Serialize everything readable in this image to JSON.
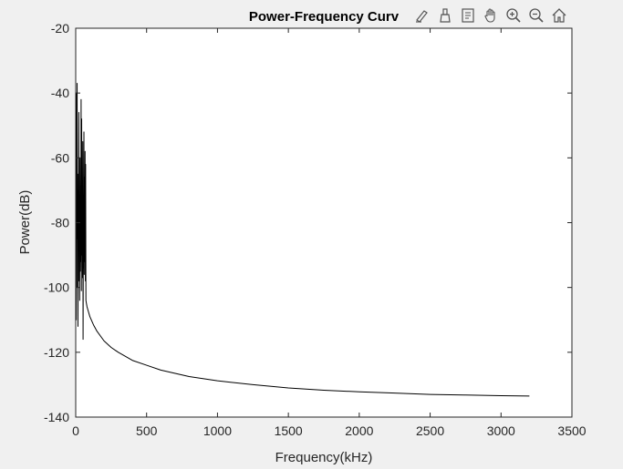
{
  "colors": {
    "background": "#f0f0f0",
    "axes_background": "#ffffff",
    "line": "#000000",
    "axis": "#262626"
  },
  "toolbar": {
    "icons": [
      "edit-plot-icon",
      "data-brush-icon",
      "data-tip-icon",
      "pan-icon",
      "zoom-in-icon",
      "zoom-out-icon",
      "home-icon"
    ]
  },
  "chart_data": {
    "type": "line",
    "title": "Power-Frequency Curv",
    "xlabel": "Frequency(kHz)",
    "ylabel": "Power(dB)",
    "xlim": [
      0,
      3500
    ],
    "ylim": [
      -140,
      -20
    ],
    "xticks": [
      0,
      500,
      1000,
      1500,
      2000,
      2500,
      3000,
      3500
    ],
    "yticks": [
      -140,
      -120,
      -100,
      -80,
      -60,
      -40,
      -20
    ],
    "xtick_labels": [
      "0",
      "500",
      "1000",
      "1500",
      "2000",
      "2500",
      "3000",
      "3500"
    ],
    "ytick_labels": [
      "-140",
      "-120",
      "-100",
      "-80",
      "-60",
      "-40",
      "-20"
    ],
    "grid": false,
    "series": [
      {
        "x": [
          0,
          2,
          4,
          6,
          8,
          10,
          12,
          14,
          16,
          18,
          20,
          22,
          24,
          26,
          28,
          30,
          32,
          34,
          36,
          38,
          40,
          42,
          44,
          46,
          48,
          50,
          52,
          54,
          56,
          58,
          60,
          62,
          64,
          66,
          68,
          70,
          72,
          76,
          80,
          90,
          100,
          125,
          150,
          200,
          250,
          300,
          400,
          500,
          600,
          800,
          1000,
          1250,
          1500,
          1750,
          2000,
          2250,
          2500,
          2750,
          3000,
          3200
        ],
        "y": [
          -95,
          -62,
          -110,
          -40,
          -85,
          -37,
          -100,
          -65,
          -112,
          -70,
          -88,
          -46,
          -98,
          -72,
          -104,
          -60,
          -95,
          -75,
          -92,
          -42,
          -101,
          -48,
          -90,
          -68,
          -97,
          -55,
          -116,
          -80,
          -94,
          -52,
          -96,
          -66,
          -92,
          -58,
          -98,
          -62,
          -104,
          -105,
          -106,
          -107.5,
          -109,
          -111.5,
          -113.5,
          -116.5,
          -118.5,
          -120,
          -122.5,
          -124,
          -125.5,
          -127.5,
          -128.8,
          -130,
          -131,
          -131.7,
          -132.2,
          -132.6,
          -133,
          -133.2,
          -133.4,
          -133.5
        ]
      }
    ]
  }
}
